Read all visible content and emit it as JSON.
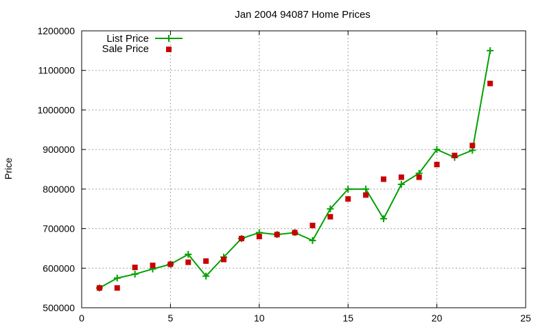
{
  "chart_data": {
    "type": "line",
    "title": "Jan 2004 94087 Home Prices",
    "xlabel": "",
    "ylabel": "Price",
    "xlim": [
      0,
      25
    ],
    "ylim": [
      500000,
      1200000
    ],
    "xticks": [
      "0",
      "5",
      "10",
      "15",
      "20",
      "25"
    ],
    "yticks": [
      "500000",
      "600000",
      "700000",
      "800000",
      "900000",
      "1000000",
      "1100000",
      "1200000"
    ],
    "grid": true,
    "legend_position": "top-left",
    "series": [
      {
        "name": "List Price",
        "style": "line-with-plus-markers",
        "color": "#00a000",
        "x": [
          1,
          2,
          3,
          4,
          5,
          6,
          7,
          8,
          9,
          10,
          11,
          12,
          13,
          14,
          15,
          16,
          17,
          18,
          19,
          20,
          21,
          22,
          23
        ],
        "y": [
          550000,
          575000,
          585000,
          598000,
          610000,
          635000,
          580000,
          628000,
          675000,
          690000,
          685000,
          690000,
          670000,
          750000,
          800000,
          800000,
          725000,
          812000,
          840000,
          900000,
          880000,
          898000,
          1150000
        ]
      },
      {
        "name": "Sale Price",
        "style": "square-markers",
        "color": "#c80000",
        "x": [
          1,
          2,
          3,
          4,
          5,
          6,
          7,
          8,
          9,
          10,
          11,
          12,
          13,
          14,
          15,
          16,
          17,
          18,
          19,
          20,
          21,
          22,
          23
        ],
        "y": [
          550000,
          550000,
          602000,
          607000,
          610000,
          615000,
          618000,
          622000,
          675000,
          680000,
          685000,
          690000,
          708000,
          730000,
          775000,
          785000,
          825000,
          830000,
          830000,
          862000,
          885000,
          910000,
          1067000
        ]
      }
    ]
  }
}
